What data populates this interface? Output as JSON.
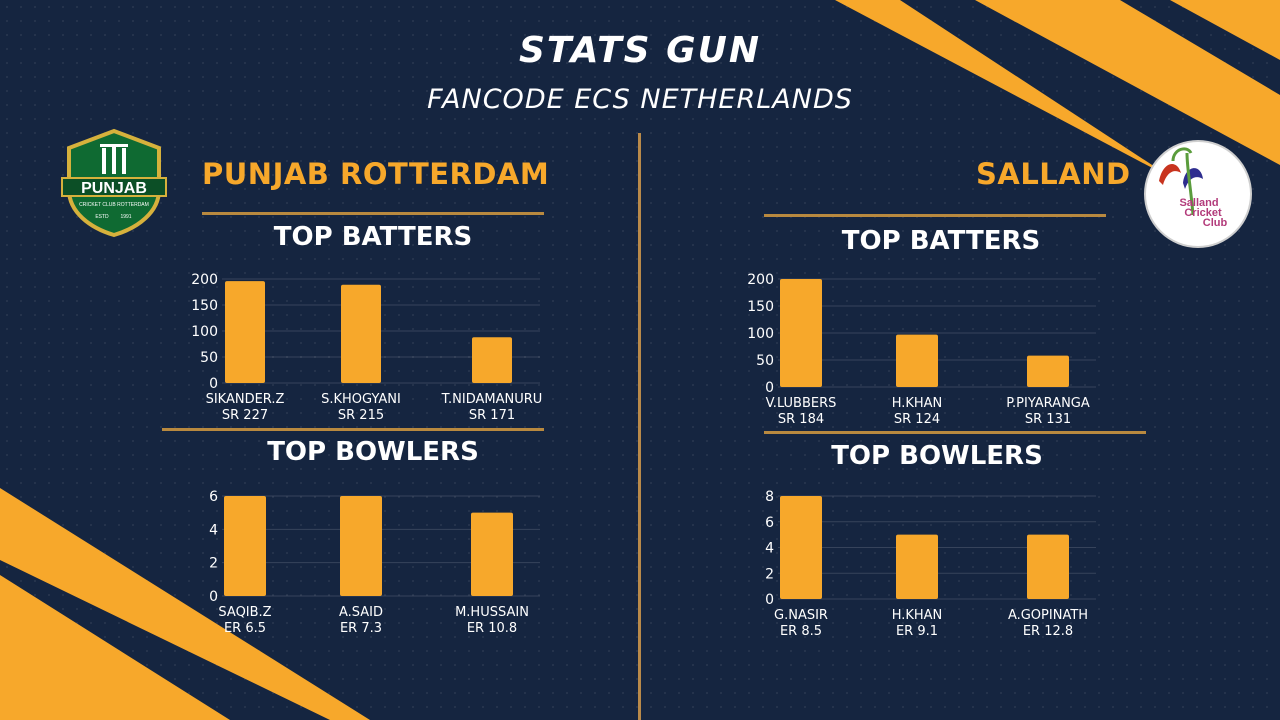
{
  "header": {
    "title": "STATS GUN",
    "subtitle": "FANCODE ECS NETHERLANDS"
  },
  "colors": {
    "background": "#152540",
    "accent": "#f7a82b",
    "bar": "#f7a82b",
    "rule": "#b8893f"
  },
  "left_team": {
    "name": "PUNJAB ROTTERDAM",
    "logo": {
      "name": "PUNJAB",
      "tagline": "CRICKET CLUB ROTTERDAM",
      "established_left": "ESTD",
      "established_right": "1991"
    },
    "batters_title": "TOP BATTERS",
    "bowlers_title": "TOP BOWLERS"
  },
  "right_team": {
    "name": "SALLAND",
    "logo": {
      "line1": "Salland",
      "line2": "Cricket",
      "line3": "Club"
    },
    "batters_title": "TOP BATTERS",
    "bowlers_title": "TOP BOWLERS"
  },
  "chart_data": [
    {
      "type": "bar",
      "team": "PUNJAB ROTTERDAM",
      "categories": [
        "SIKANDER.Z",
        "S.KHOGYANI",
        "T.NIDAMANURU"
      ],
      "sublabels": [
        "SR 227",
        "SR 215",
        "SR 171"
      ],
      "values": [
        196,
        189,
        88
      ],
      "ylim": [
        0,
        200
      ],
      "yticks": [
        "0",
        "50",
        "100",
        "150",
        "200"
      ],
      "title": "TOP BATTERS",
      "grid": true
    },
    {
      "type": "bar",
      "team": "PUNJAB ROTTERDAM",
      "categories": [
        "SAQIB.Z",
        "A.SAID",
        "M.HUSSAIN"
      ],
      "sublabels": [
        "ER 6.5",
        "ER 7.3",
        "ER 10.8"
      ],
      "values": [
        6,
        6,
        5
      ],
      "ylim": [
        0,
        6
      ],
      "yticks": [
        "0",
        "2",
        "4",
        "6"
      ],
      "title": "TOP BOWLERS",
      "grid": true
    },
    {
      "type": "bar",
      "team": "SALLAND",
      "categories": [
        "V.LUBBERS",
        "H.KHAN",
        "P.PIYARANGA"
      ],
      "sublabels": [
        "SR 184",
        "SR 124",
        "SR 131"
      ],
      "values": [
        200,
        97,
        58
      ],
      "ylim": [
        0,
        200
      ],
      "yticks": [
        "0",
        "50",
        "100",
        "150",
        "200"
      ],
      "title": "TOP BATTERS",
      "grid": true
    },
    {
      "type": "bar",
      "team": "SALLAND",
      "categories": [
        "G.NASIR",
        "H.KHAN",
        "A.GOPINATH"
      ],
      "sublabels": [
        "ER 8.5",
        "ER 9.1",
        "ER 12.8"
      ],
      "values": [
        8,
        5,
        5
      ],
      "ylim": [
        0,
        8
      ],
      "yticks": [
        "0",
        "2",
        "4",
        "6",
        "8"
      ],
      "title": "TOP BOWLERS",
      "grid": true
    }
  ]
}
